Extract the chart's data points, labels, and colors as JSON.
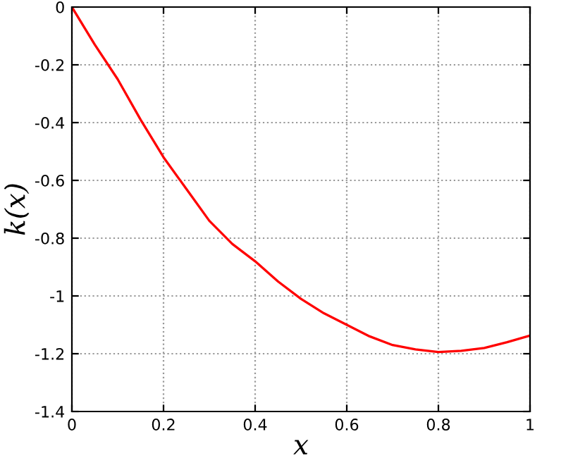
{
  "chart_data": {
    "type": "line",
    "xlabel": "x",
    "ylabel": "k(x)",
    "x": [
      0,
      0.05,
      0.1,
      0.15,
      0.2,
      0.25,
      0.3,
      0.35,
      0.4,
      0.45,
      0.5,
      0.55,
      0.6,
      0.65,
      0.7,
      0.75,
      0.8,
      0.85,
      0.9,
      0.95,
      1
    ],
    "series": [
      {
        "color": "#ff0000",
        "values": [
          0,
          -0.13,
          -0.25,
          -0.39,
          -0.52,
          -0.63,
          -0.74,
          -0.82,
          -0.88,
          -0.95,
          -1.01,
          -1.06,
          -1.1,
          -1.14,
          -1.17,
          -1.185,
          -1.194,
          -1.19,
          -1.18,
          -1.16,
          -1.137
        ]
      }
    ],
    "xlim": [
      0,
      1
    ],
    "ylim": [
      -1.4,
      0
    ],
    "xticks": [
      0,
      0.2,
      0.4,
      0.6,
      0.8,
      1
    ],
    "yticks": [
      -1.4,
      -1.2,
      -1,
      -0.8,
      -0.6,
      -0.4,
      -0.2,
      0
    ],
    "grid": true,
    "line_style": "solid",
    "legend": false
  }
}
